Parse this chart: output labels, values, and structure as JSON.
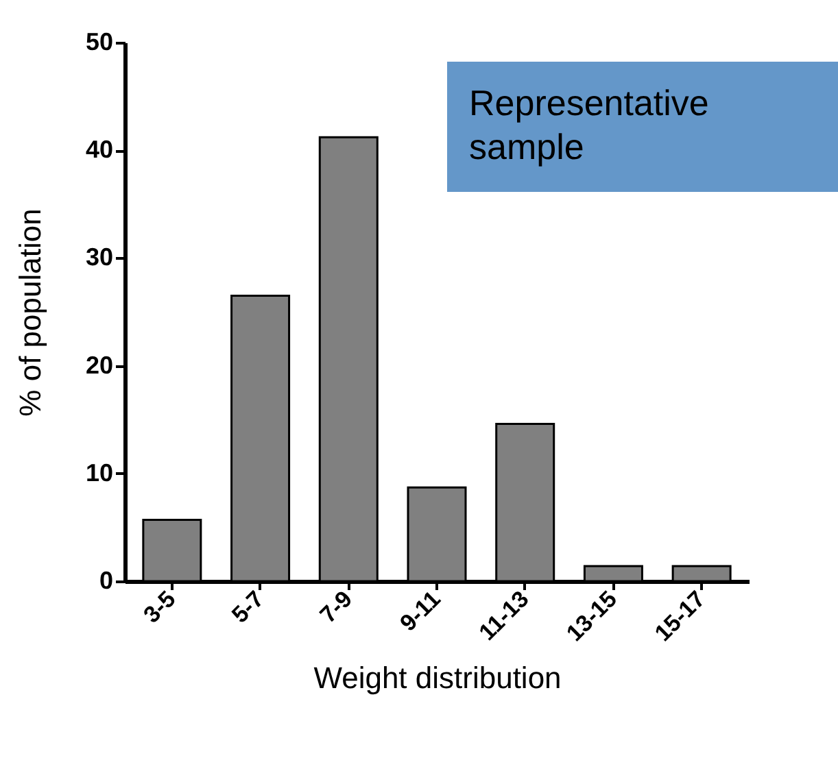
{
  "chart_data": {
    "type": "bar",
    "xlabel": "Weight distribution",
    "ylabel": "% of population",
    "categories": [
      "3-5",
      "5-7",
      "7-9",
      "9-11",
      "11-13",
      "13-15",
      "15-17"
    ],
    "values": [
      5.7,
      26.5,
      41.2,
      8.7,
      14.6,
      1.4,
      1.4
    ],
    "color": "#808080",
    "ylim": [
      0,
      50
    ],
    "yticks": [
      0,
      10,
      20,
      30,
      40,
      50
    ],
    "grid": false,
    "annotations": [
      "Representative sample"
    ]
  }
}
